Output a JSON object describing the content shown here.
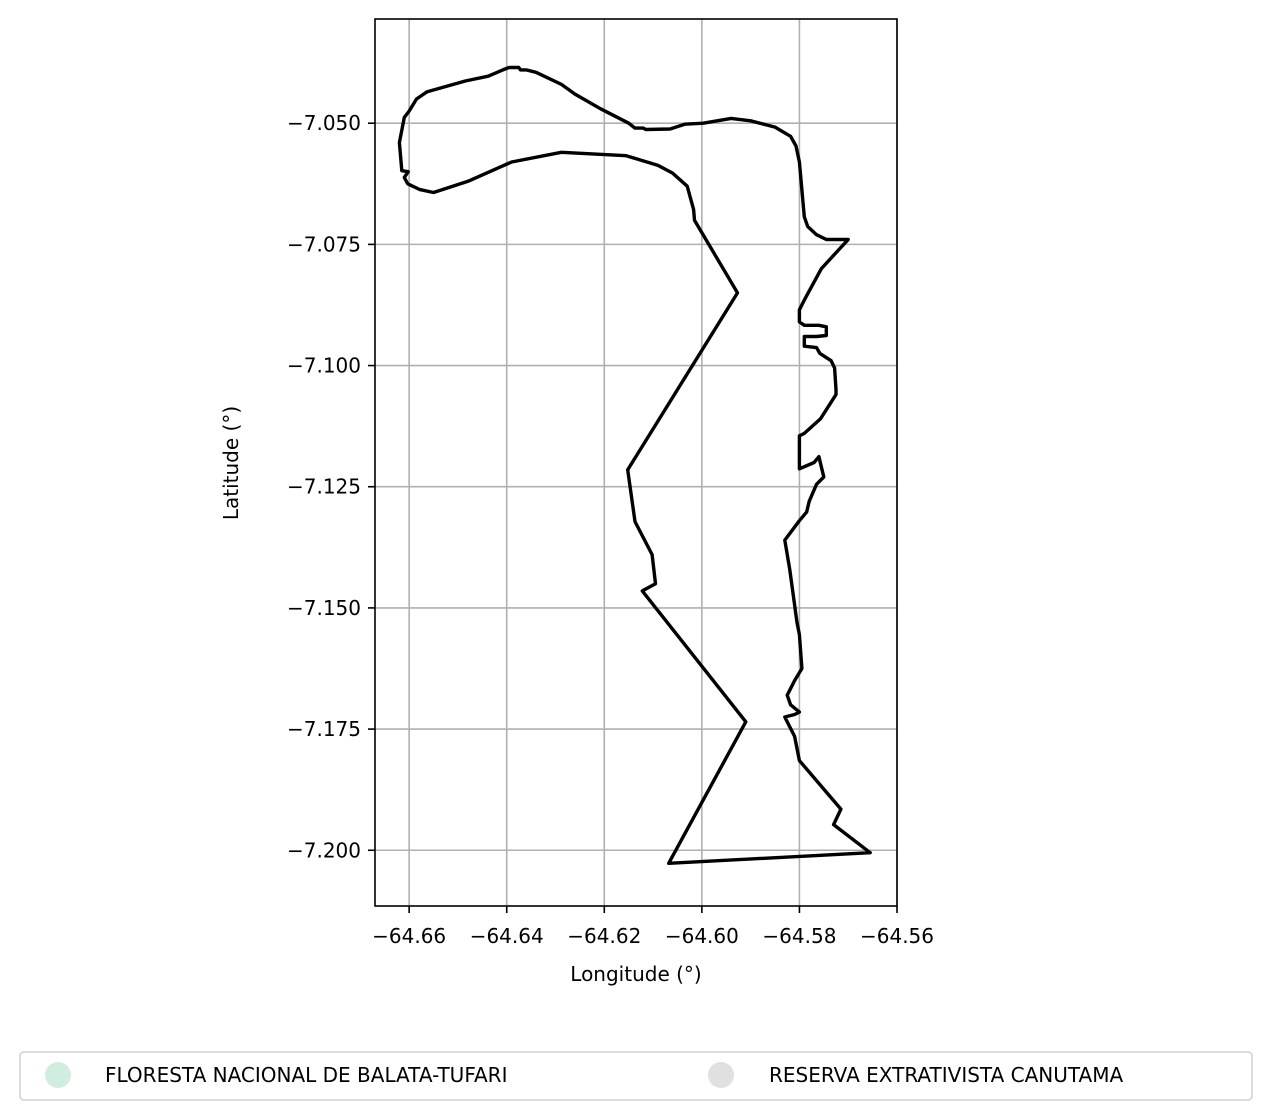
{
  "chart_data": {
    "type": "map",
    "xlabel": "Longitude (°)",
    "ylabel": "Latitude (°)",
    "xlim": [
      -64.667,
      -64.56
    ],
    "ylim": [
      -7.2115,
      -7.0285
    ],
    "grid": true,
    "x_ticks": [
      {
        "value": -64.66,
        "label": "−64.66"
      },
      {
        "value": -64.64,
        "label": "−64.64"
      },
      {
        "value": -64.62,
        "label": "−64.62"
      },
      {
        "value": -64.6,
        "label": "−64.60"
      },
      {
        "value": -64.58,
        "label": "−64.58"
      },
      {
        "value": -64.56,
        "label": "−64.56"
      }
    ],
    "y_ticks": [
      {
        "value": -7.05,
        "label": "−7.050"
      },
      {
        "value": -7.075,
        "label": "−7.075"
      },
      {
        "value": -7.1,
        "label": "−7.100"
      },
      {
        "value": -7.125,
        "label": "−7.125"
      },
      {
        "value": -7.15,
        "label": "−7.150"
      },
      {
        "value": -7.175,
        "label": "−7.175"
      },
      {
        "value": -7.2,
        "label": "−7.200"
      }
    ],
    "outline_color": "#000000",
    "boundary": [
      [
        -64.6068,
        -7.2027
      ],
      [
        -64.591,
        -7.1735
      ],
      [
        -64.6122,
        -7.1465
      ],
      [
        -64.6095,
        -7.145
      ],
      [
        -64.6102,
        -7.139
      ],
      [
        -64.6137,
        -7.1322
      ],
      [
        -64.6152,
        -7.1215
      ],
      [
        -64.5927,
        -7.085
      ],
      [
        -64.6015,
        -7.07
      ],
      [
        -64.6017,
        -7.0678
      ],
      [
        -64.603,
        -7.063
      ],
      [
        -64.606,
        -7.0603
      ],
      [
        -64.609,
        -7.0587
      ],
      [
        -64.6155,
        -7.0567
      ],
      [
        -64.6288,
        -7.056
      ],
      [
        -64.639,
        -7.058
      ],
      [
        -64.648,
        -7.062
      ],
      [
        -64.655,
        -7.0643
      ],
      [
        -64.6578,
        -7.0637
      ],
      [
        -64.6603,
        -7.0625
      ],
      [
        -64.661,
        -7.0612
      ],
      [
        -64.6602,
        -7.06
      ],
      [
        -64.6615,
        -7.0598
      ],
      [
        -64.662,
        -7.054
      ],
      [
        -64.661,
        -7.0488
      ],
      [
        -64.66,
        -7.0475
      ],
      [
        -64.6585,
        -7.045
      ],
      [
        -64.6563,
        -7.0435
      ],
      [
        -64.6485,
        -7.0413
      ],
      [
        -64.6438,
        -7.0403
      ],
      [
        -64.6408,
        -7.039
      ],
      [
        -64.6395,
        -7.0385
      ],
      [
        -64.6375,
        -7.0385
      ],
      [
        -64.6372,
        -7.039
      ],
      [
        -64.636,
        -7.039
      ],
      [
        -64.634,
        -7.0395
      ],
      [
        -64.6288,
        -7.042
      ],
      [
        -64.626,
        -7.044
      ],
      [
        -64.6208,
        -7.047
      ],
      [
        -64.615,
        -7.05
      ],
      [
        -64.6137,
        -7.051
      ],
      [
        -64.612,
        -7.051
      ],
      [
        -64.6115,
        -7.0513
      ],
      [
        -64.6065,
        -7.0512
      ],
      [
        -64.6035,
        -7.0502
      ],
      [
        -64.5997,
        -7.05
      ],
      [
        -64.594,
        -7.049
      ],
      [
        -64.59,
        -7.0495
      ],
      [
        -64.585,
        -7.0508
      ],
      [
        -64.5818,
        -7.0527
      ],
      [
        -64.5807,
        -7.0547
      ],
      [
        -64.58,
        -7.058
      ],
      [
        -64.579,
        -7.0693
      ],
      [
        -64.5783,
        -7.0713
      ],
      [
        -64.5765,
        -7.073
      ],
      [
        -64.5745,
        -7.074
      ],
      [
        -64.57,
        -7.074
      ],
      [
        -64.5755,
        -7.08
      ],
      [
        -64.579,
        -7.0865
      ],
      [
        -64.58,
        -7.0885
      ],
      [
        -64.58,
        -7.091
      ],
      [
        -64.579,
        -7.0917
      ],
      [
        -64.576,
        -7.0917
      ],
      [
        -64.5745,
        -7.092
      ],
      [
        -64.5745,
        -7.0938
      ],
      [
        -64.5765,
        -7.094
      ],
      [
        -64.579,
        -7.094
      ],
      [
        -64.579,
        -7.096
      ],
      [
        -64.5765,
        -7.0963
      ],
      [
        -64.5758,
        -7.0975
      ],
      [
        -64.5735,
        -7.099
      ],
      [
        -64.5728,
        -7.1005
      ],
      [
        -64.5725,
        -7.105
      ],
      [
        -64.5725,
        -7.106
      ],
      [
        -64.5757,
        -7.111
      ],
      [
        -64.579,
        -7.114
      ],
      [
        -64.58,
        -7.1145
      ],
      [
        -64.58,
        -7.116
      ],
      [
        -64.58,
        -7.1213
      ],
      [
        -64.577,
        -7.12
      ],
      [
        -64.576,
        -7.1188
      ],
      [
        -64.575,
        -7.123
      ],
      [
        -64.5765,
        -7.1245
      ],
      [
        -64.578,
        -7.128
      ],
      [
        -64.5785,
        -7.1302
      ],
      [
        -64.58,
        -7.132
      ],
      [
        -64.583,
        -7.136
      ],
      [
        -64.582,
        -7.142
      ],
      [
        -64.5805,
        -7.153
      ],
      [
        -64.58,
        -7.1555
      ],
      [
        -64.5795,
        -7.1625
      ],
      [
        -64.581,
        -7.165
      ],
      [
        -64.5825,
        -7.168
      ],
      [
        -64.5818,
        -7.17
      ],
      [
        -64.58,
        -7.1715
      ],
      [
        -64.581,
        -7.172
      ],
      [
        -64.583,
        -7.1725
      ],
      [
        -64.581,
        -7.1765
      ],
      [
        -64.58,
        -7.1815
      ],
      [
        -64.5715,
        -7.1915
      ],
      [
        -64.573,
        -7.1947
      ],
      [
        -64.5655,
        -7.2005
      ]
    ]
  },
  "legend": {
    "items": [
      {
        "label": "FLORESTA NACIONAL DE BALATA-TUFARI",
        "color": "#d0ede0"
      },
      {
        "label": "RESERVA EXTRATIVISTA CANUTAMA",
        "color": "#e0e0e0"
      }
    ]
  }
}
